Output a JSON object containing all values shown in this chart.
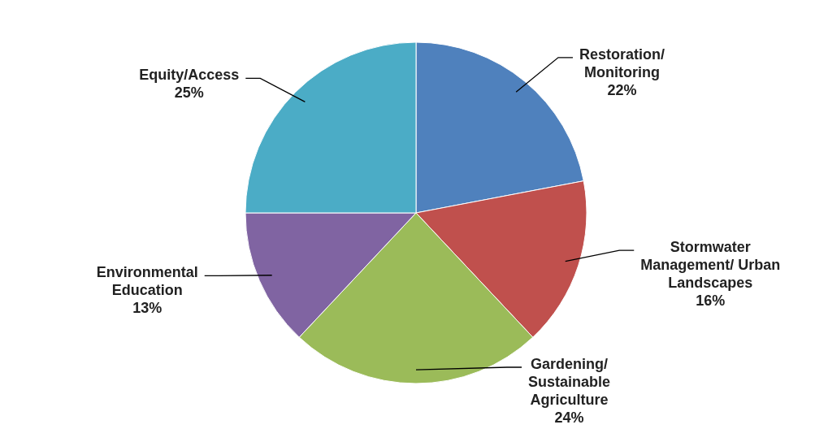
{
  "chart_data": {
    "type": "pie",
    "categories": [
      "Restoration/ Monitoring",
      "Stormwater Management/ Urban Landscapes",
      "Gardening/ Sustainable Agriculture",
      "Environmental Education",
      "Equity/Access"
    ],
    "values": [
      22,
      16,
      24,
      13,
      25
    ],
    "colors": [
      "#4f81bd",
      "#c0504d",
      "#9bbb59",
      "#8064a2",
      "#4bacc6"
    ],
    "value_labels": [
      "22%",
      "16%",
      "24%",
      "13%",
      "25%"
    ]
  }
}
